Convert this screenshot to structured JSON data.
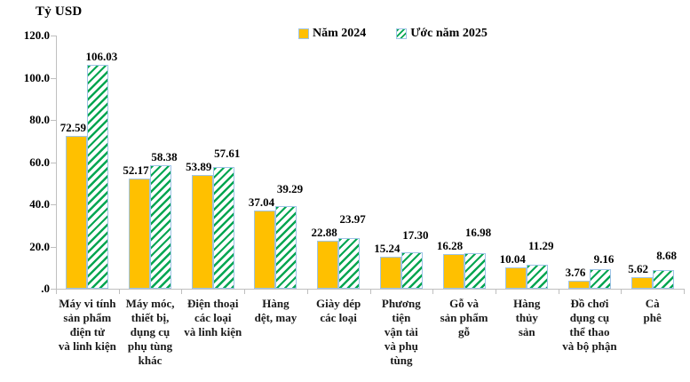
{
  "title": "Tỷ USD",
  "legend": {
    "items": [
      {
        "label": "Năm 2024"
      },
      {
        "label": "Ước năm 2025"
      }
    ]
  },
  "colors": {
    "bar_2024": "#FFC000",
    "hatch_2025": "#00A651",
    "bar_border": "#9DC3E6",
    "axis": "#BFBFBF",
    "text": "#000000"
  },
  "chart_data": {
    "type": "bar",
    "title": "Tỷ USD",
    "categories": [
      "Máy vi tính sản phẩm điện tử và linh kiện",
      "Máy móc, thiết bị, dụng cụ phụ tùng khác",
      "Điện thoại các loại và linh kiện",
      "Hàng dệt, may",
      "Giày dép các loại",
      "Phương tiện vận tải và phụ tùng",
      "Gỗ và sản phẩm gỗ",
      "Hàng thủy sản",
      "Đồ chơi dụng cụ thể thao và bộ phận",
      "Cà phê"
    ],
    "category_lines": [
      [
        "Máy vi tính",
        "sản phẩm",
        "điện tử",
        "và linh kiện"
      ],
      [
        "Máy móc,",
        "thiết bị,",
        "dụng cụ",
        "phụ tùng",
        "khác"
      ],
      [
        "Điện thoại",
        "các loại",
        "và linh kiện"
      ],
      [
        "Hàng",
        "dệt, may"
      ],
      [
        "Giày dép",
        "các loại"
      ],
      [
        "Phương",
        "tiện",
        "vận tải",
        "và phụ",
        "tùng"
      ],
      [
        "Gỗ và",
        "sản phẩm",
        "gỗ"
      ],
      [
        "Hàng",
        "thủy",
        "sản"
      ],
      [
        "Đồ chơi",
        "dụng cụ",
        "thể thao",
        "và bộ phận"
      ],
      [
        "Cà",
        "phê"
      ]
    ],
    "series": [
      {
        "name": "Năm 2024",
        "values": [
          72.59,
          52.17,
          53.89,
          37.04,
          22.88,
          15.24,
          16.28,
          10.04,
          3.76,
          5.62
        ]
      },
      {
        "name": "Ước năm 2025",
        "values": [
          106.03,
          58.38,
          57.61,
          39.29,
          23.97,
          17.3,
          16.98,
          11.29,
          9.16,
          8.68
        ]
      }
    ],
    "ylabel": "Tỷ USD",
    "xlabel": "",
    "ylim": [
      0,
      120
    ],
    "yticks": [
      {
        "v": 120,
        "label": "120.0"
      },
      {
        "v": 100,
        "label": "100.0"
      },
      {
        "v": 80,
        "label": "80.0"
      },
      {
        "v": 60,
        "label": "60.0"
      },
      {
        "v": 40,
        "label": "40.0"
      },
      {
        "v": 20,
        "label": "20.0"
      },
      {
        "v": 0,
        "label": ".0"
      }
    ],
    "grid": false,
    "legend_position": "top"
  }
}
